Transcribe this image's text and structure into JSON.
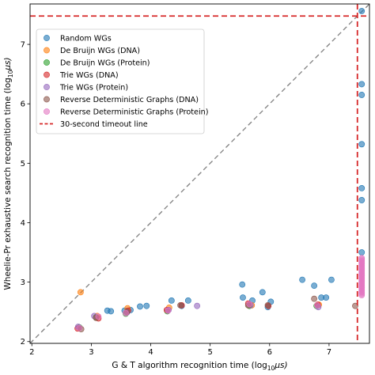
{
  "chart_data": {
    "type": "scatter",
    "xlabel": "G & T algorithm recognition time (log",
    "xlabel_sub": "10",
    "xlabel_unit": "μs)",
    "ylabel": "Wheelie-Pr exhaustive search recognition time (log",
    "ylabel_sub": "10",
    "ylabel_unit": "μs)",
    "xlim": [
      1.97,
      7.68
    ],
    "ylim": [
      1.97,
      7.68
    ],
    "x_ticks": [
      2,
      3,
      4,
      5,
      6,
      7
    ],
    "y_ticks": [
      2,
      3,
      4,
      5,
      6,
      7
    ],
    "grid": false,
    "legend_position": "upper-left",
    "diagonal": "y = x (gray dashed)",
    "timeout": {
      "label": "30-second timeout line",
      "value": 7.477,
      "color": "#d62728"
    },
    "series": [
      {
        "name": "Random WGs",
        "color": "#1f77b4",
        "points": [
          [
            3.27,
            2.52
          ],
          [
            3.33,
            2.51
          ],
          [
            3.56,
            2.52
          ],
          [
            3.66,
            2.53
          ],
          [
            3.82,
            2.59
          ],
          [
            3.93,
            2.6
          ],
          [
            4.35,
            2.69
          ],
          [
            4.52,
            2.6
          ],
          [
            4.63,
            2.69
          ],
          [
            5.54,
            2.96
          ],
          [
            5.55,
            2.74
          ],
          [
            5.71,
            2.69
          ],
          [
            5.88,
            2.83
          ],
          [
            5.97,
            2.58
          ],
          [
            6.02,
            2.67
          ],
          [
            6.55,
            3.04
          ],
          [
            6.75,
            2.94
          ],
          [
            6.87,
            2.74
          ],
          [
            6.95,
            2.74
          ],
          [
            7.04,
            3.04
          ],
          [
            7.55,
            7.56
          ],
          [
            7.55,
            6.33
          ],
          [
            7.55,
            6.15
          ],
          [
            7.55,
            5.32
          ],
          [
            7.55,
            4.58
          ],
          [
            7.55,
            4.38
          ],
          [
            7.55,
            3.5
          ]
        ]
      },
      {
        "name": "De Bruijn WGs (DNA)",
        "color": "#ff7f0e",
        "points": [
          [
            2.82,
            2.83
          ],
          [
            3.1,
            2.43
          ],
          [
            3.61,
            2.56
          ],
          [
            4.31,
            2.57
          ],
          [
            5.7,
            2.61
          ],
          [
            6.83,
            2.62
          ]
        ]
      },
      {
        "name": "De Bruijn WGs (Protein)",
        "color": "#2ca02c",
        "points": [
          [
            2.8,
            2.24
          ],
          [
            3.08,
            2.41
          ],
          [
            3.58,
            2.47
          ],
          [
            4.28,
            2.51
          ],
          [
            5.66,
            2.6
          ],
          [
            6.79,
            2.6
          ]
        ]
      },
      {
        "name": "Trie WGs (DNA)",
        "color": "#d62728",
        "points": [
          [
            2.77,
            2.22
          ],
          [
            3.12,
            2.39
          ],
          [
            3.62,
            2.52
          ],
          [
            4.27,
            2.53
          ],
          [
            4.52,
            2.61
          ],
          [
            5.64,
            2.64
          ],
          [
            5.98,
            2.6
          ],
          [
            6.81,
            2.62
          ]
        ]
      },
      {
        "name": "Trie WGs (Protein)",
        "color": "#9467bd",
        "points": [
          [
            2.78,
            2.25
          ],
          [
            3.05,
            2.43
          ],
          [
            3.6,
            2.49
          ],
          [
            4.3,
            2.53
          ],
          [
            4.78,
            2.6
          ],
          [
            5.68,
            2.61
          ],
          [
            6.82,
            2.58
          ]
        ]
      },
      {
        "name": "Reverse Deterministic Graphs (DNA)",
        "color": "#8c564b",
        "points": [
          [
            2.83,
            2.21
          ],
          [
            3.08,
            2.4
          ],
          [
            3.6,
            2.5
          ],
          [
            4.5,
            2.61
          ],
          [
            5.64,
            2.61
          ],
          [
            5.97,
            2.61
          ],
          [
            6.75,
            2.72
          ],
          [
            7.44,
            2.6
          ]
        ]
      },
      {
        "name": "Reverse Deterministic Graphs (Protein)",
        "color": "#e377c2",
        "points": [
          [
            2.8,
            2.23
          ],
          [
            3.12,
            2.42
          ],
          [
            3.58,
            2.48
          ],
          [
            4.29,
            2.52
          ],
          [
            5.66,
            2.63
          ],
          [
            6.8,
            2.61
          ]
        ]
      }
    ],
    "timeout_cluster": {
      "series": "Reverse Deterministic Graphs (Protein)",
      "x": 7.55,
      "y_range": [
        2.78,
        3.42
      ],
      "color": "#e377c2"
    }
  }
}
